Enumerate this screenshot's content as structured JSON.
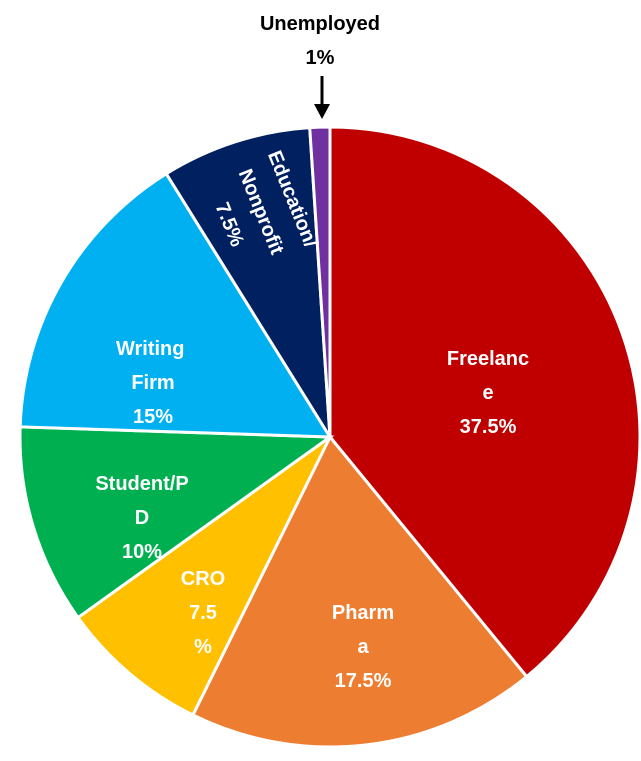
{
  "chart_data": {
    "type": "pie",
    "categories": [
      "Freelance",
      "Pharma",
      "CRO",
      "Student/PD",
      "Writing Firm",
      "Education/Nonprofit",
      "Unemployed"
    ],
    "values": [
      37.5,
      17.5,
      7.5,
      10,
      15,
      7.5,
      1
    ],
    "value_labels": [
      "37.5%",
      "17.5%",
      "7.5%",
      "10%",
      "15%",
      "7.5%",
      "1%"
    ],
    "colors": [
      "#c00000",
      "#ed7d31",
      "#ffc000",
      "#00b050",
      "#00b0f0",
      "#002060",
      "#7030a0"
    ]
  }
}
